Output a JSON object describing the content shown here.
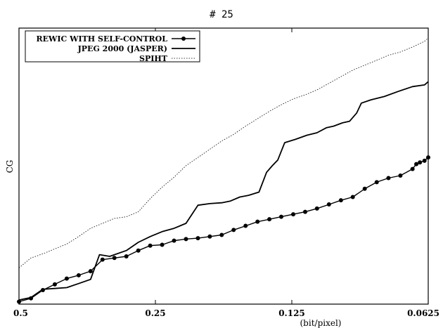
{
  "chart_data": {
    "type": "line",
    "title": "# 25",
    "xlabel": "(bit/pixel)",
    "ylabel": "CG",
    "x_ticks": [
      "0.5",
      "0.25",
      "0.125",
      "0.0625"
    ],
    "x_scale": "log2",
    "x_range": [
      0.5,
      0.0625
    ],
    "y_ticks_shown": false,
    "grid": false,
    "legend_position": "top-left",
    "series": [
      {
        "name": "REWIC WITH SELF-CONTROL",
        "style": "line-with-markers",
        "color": "#000000",
        "points": [
          [
            0.5,
            3
          ],
          [
            0.4705,
            7
          ],
          [
            0.4429,
            17
          ],
          [
            0.4168,
            24
          ],
          [
            0.3923,
            31
          ],
          [
            0.3692,
            35
          ],
          [
            0.3475,
            40
          ],
          [
            0.3271,
            54
          ],
          [
            0.3079,
            56
          ],
          [
            0.2898,
            58
          ],
          [
            0.2727,
            65
          ],
          [
            0.2567,
            71
          ],
          [
            0.2416,
            72
          ],
          [
            0.2274,
            77
          ],
          [
            0.214,
            79
          ],
          [
            0.2014,
            80
          ],
          [
            0.1896,
            82
          ],
          [
            0.1785,
            84
          ],
          [
            0.168,
            90
          ],
          [
            0.1581,
            95
          ],
          [
            0.1488,
            100
          ],
          [
            0.1401,
            103
          ],
          [
            0.1319,
            106
          ],
          [
            0.1241,
            109
          ],
          [
            0.1168,
            112
          ],
          [
            0.11,
            116
          ],
          [
            0.1035,
            121
          ],
          [
            0.0974,
            126
          ],
          [
            0.0917,
            130
          ],
          [
            0.0863,
            140
          ],
          [
            0.0812,
            148
          ],
          [
            0.0765,
            153
          ],
          [
            0.072,
            156
          ],
          [
            0.0677,
            164
          ],
          [
            0.0664,
            170
          ],
          [
            0.0652,
            172
          ],
          [
            0.0637,
            174
          ],
          [
            0.0625,
            178
          ]
        ]
      },
      {
        "name": "JPEG 2000 (JASPER)",
        "style": "line",
        "color": "#000000",
        "points": [
          [
            0.5,
            5
          ],
          [
            0.4705,
            8
          ],
          [
            0.4429,
            18
          ],
          [
            0.4168,
            19
          ],
          [
            0.3923,
            20
          ],
          [
            0.3692,
            25
          ],
          [
            0.3475,
            30
          ],
          [
            0.3321,
            60
          ],
          [
            0.3154,
            58
          ],
          [
            0.2898,
            65
          ],
          [
            0.2727,
            75
          ],
          [
            0.2567,
            82
          ],
          [
            0.2416,
            88
          ],
          [
            0.2274,
            92
          ],
          [
            0.214,
            98
          ],
          [
            0.2014,
            120
          ],
          [
            0.1896,
            122
          ],
          [
            0.1785,
            123
          ],
          [
            0.1711,
            125
          ],
          [
            0.1628,
            130
          ],
          [
            0.1557,
            132
          ],
          [
            0.1477,
            136
          ],
          [
            0.1421,
            160
          ],
          [
            0.138,
            168
          ],
          [
            0.1342,
            175
          ],
          [
            0.1296,
            196
          ],
          [
            0.1227,
            200
          ],
          [
            0.1157,
            205
          ],
          [
            0.11,
            208
          ],
          [
            0.1049,
            214
          ],
          [
            0.1011,
            216
          ],
          [
            0.0966,
            220
          ],
          [
            0.0932,
            222
          ],
          [
            0.0899,
            232
          ],
          [
            0.0878,
            244
          ],
          [
            0.0836,
            248
          ],
          [
            0.0781,
            252
          ],
          [
            0.0729,
            258
          ],
          [
            0.0677,
            264
          ],
          [
            0.0637,
            266
          ],
          [
            0.0625,
            270
          ]
        ]
      },
      {
        "name": "SPIHT",
        "style": "dotted",
        "color": "#000000",
        "points": [
          [
            0.5,
            44
          ],
          [
            0.4705,
            56
          ],
          [
            0.4429,
            61
          ],
          [
            0.4168,
            67
          ],
          [
            0.3923,
            73
          ],
          [
            0.3692,
            82
          ],
          [
            0.3475,
            92
          ],
          [
            0.3271,
            98
          ],
          [
            0.3079,
            104
          ],
          [
            0.2898,
            106
          ],
          [
            0.2727,
            112
          ],
          [
            0.2567,
            128
          ],
          [
            0.2416,
            142
          ],
          [
            0.2274,
            154
          ],
          [
            0.214,
            168
          ],
          [
            0.2014,
            178
          ],
          [
            0.1896,
            188
          ],
          [
            0.1785,
            198
          ],
          [
            0.168,
            206
          ],
          [
            0.1581,
            216
          ],
          [
            0.1488,
            225
          ],
          [
            0.1401,
            234
          ],
          [
            0.1319,
            242
          ],
          [
            0.1241,
            249
          ],
          [
            0.1168,
            254
          ],
          [
            0.11,
            260
          ],
          [
            0.1035,
            268
          ],
          [
            0.0974,
            276
          ],
          [
            0.0917,
            284
          ],
          [
            0.0863,
            290
          ],
          [
            0.0812,
            296
          ],
          [
            0.0765,
            302
          ],
          [
            0.072,
            306
          ],
          [
            0.0677,
            312
          ],
          [
            0.0637,
            319
          ],
          [
            0.0625,
            323
          ]
        ]
      }
    ],
    "y_range": [
      0,
      335
    ]
  }
}
